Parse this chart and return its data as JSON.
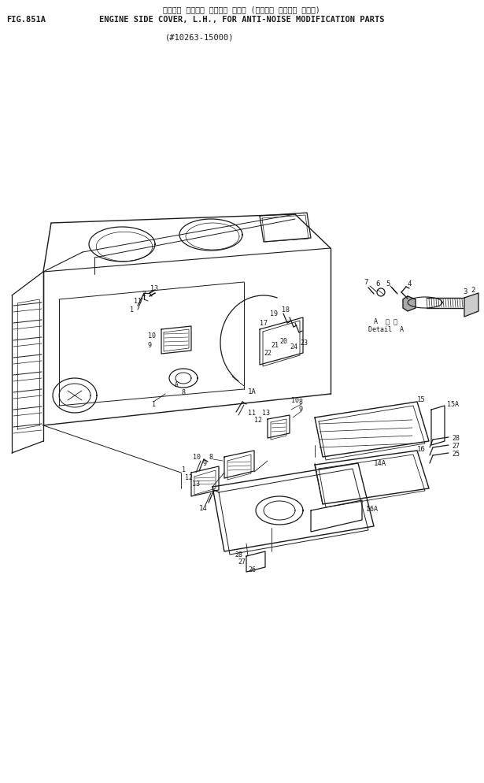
{
  "title_jp": "エンジン サイド・ カバー、 ヒダリ (ソウオン タイサク ブヒン)",
  "fig_label": "FIG.851A",
  "title_en": "ENGINE SIDE COVER, L.H., FOR ANTI-NOISE MODIFICATION PARTS",
  "subtitle": "(#10263-15000)",
  "bg_color": "#ffffff",
  "line_color": "#1a1a1a",
  "text_color": "#1a1a1a"
}
